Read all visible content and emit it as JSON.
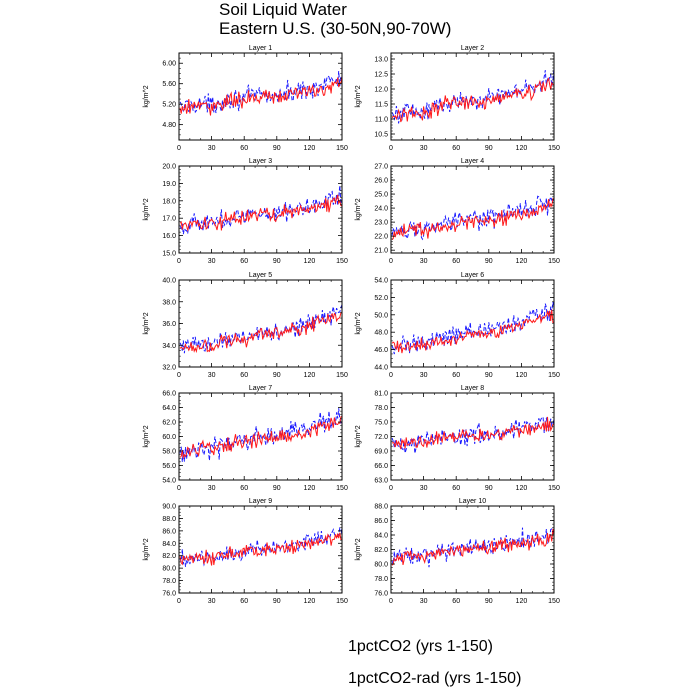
{
  "title": "Soil Liquid Water",
  "subtitle": "Eastern U.S. (30-50N,90-70W)",
  "colors": {
    "series1": "#1a1aff",
    "series2": "#ff1a1a",
    "axis": "#000000"
  },
  "legend": [
    {
      "label": "1pctCO2 (yrs 1-150)",
      "color": "#1a1aff",
      "style": "dashed"
    },
    {
      "label": "1pctCO2-rad (yrs 1-150)",
      "color": "#ff1a1a",
      "style": "solid"
    }
  ],
  "chart_data": [
    {
      "type": "line",
      "title": "Layer 1",
      "ylabel": "kg/m^2",
      "xlim": [
        0,
        150
      ],
      "ylim": [
        4.5,
        6.2
      ],
      "xticks": [
        0,
        30,
        60,
        90,
        120,
        150
      ],
      "yticks": [
        "4.80",
        "5.20",
        "5.60",
        "6.00"
      ],
      "yminor": 0.1,
      "series": [
        {
          "name": "1pctCO2 (yrs 1-150)",
          "x": [
            0,
            15,
            30,
            45,
            60,
            75,
            90,
            105,
            120,
            135,
            150
          ],
          "y": [
            5.12,
            5.22,
            5.18,
            5.3,
            5.32,
            5.38,
            5.36,
            5.44,
            5.5,
            5.62,
            5.7
          ]
        },
        {
          "name": "1pctCO2-rad (yrs 1-150)",
          "x": [
            0,
            15,
            30,
            45,
            60,
            75,
            90,
            105,
            120,
            135,
            150
          ],
          "y": [
            5.1,
            5.18,
            5.15,
            5.26,
            5.28,
            5.34,
            5.32,
            5.4,
            5.45,
            5.52,
            5.58
          ]
        }
      ]
    },
    {
      "type": "line",
      "title": "Layer 2",
      "ylabel": "kg/m^2",
      "xlim": [
        0,
        150
      ],
      "ylim": [
        10.3,
        13.2
      ],
      "xticks": [
        0,
        30,
        60,
        90,
        120,
        150
      ],
      "yticks": [
        "10.5",
        "11.0",
        "11.5",
        "12.0",
        "12.5",
        "13.0"
      ],
      "yminor": 0.1,
      "series": [
        {
          "name": "1pctCO2 (yrs 1-150)",
          "x": [
            0,
            15,
            30,
            45,
            60,
            75,
            90,
            105,
            120,
            135,
            150
          ],
          "y": [
            11.1,
            11.3,
            11.2,
            11.5,
            11.55,
            11.7,
            11.65,
            11.85,
            11.95,
            12.15,
            12.4
          ]
        },
        {
          "name": "1pctCO2-rad (yrs 1-150)",
          "x": [
            0,
            15,
            30,
            45,
            60,
            75,
            90,
            105,
            120,
            135,
            150
          ],
          "y": [
            11.05,
            11.25,
            11.15,
            11.45,
            11.5,
            11.6,
            11.6,
            11.75,
            11.85,
            12.0,
            12.2
          ]
        }
      ]
    },
    {
      "type": "line",
      "title": "Layer 3",
      "ylabel": "kg/m^2",
      "xlim": [
        0,
        150
      ],
      "ylim": [
        15.0,
        20.0
      ],
      "xticks": [
        0,
        30,
        60,
        90,
        120,
        150
      ],
      "yticks": [
        "15.0",
        "16.0",
        "17.0",
        "18.0",
        "19.0",
        "20.0"
      ],
      "yminor": 0.2,
      "series": [
        {
          "name": "1pctCO2 (yrs 1-150)",
          "x": [
            0,
            15,
            30,
            45,
            60,
            75,
            90,
            105,
            120,
            135,
            150
          ],
          "y": [
            16.5,
            16.8,
            16.7,
            17.0,
            17.1,
            17.3,
            17.3,
            17.5,
            17.7,
            18.0,
            18.3
          ]
        },
        {
          "name": "1pctCO2-rad (yrs 1-150)",
          "x": [
            0,
            15,
            30,
            45,
            60,
            75,
            90,
            105,
            120,
            135,
            150
          ],
          "y": [
            16.45,
            16.7,
            16.6,
            16.9,
            17.0,
            17.2,
            17.2,
            17.4,
            17.55,
            17.8,
            18.0
          ]
        }
      ]
    },
    {
      "type": "line",
      "title": "Layer 4",
      "ylabel": "kg/m^2",
      "xlim": [
        0,
        150
      ],
      "ylim": [
        20.8,
        27.0
      ],
      "xticks": [
        0,
        30,
        60,
        90,
        120,
        150
      ],
      "yticks": [
        "21.0",
        "22.0",
        "23.0",
        "24.0",
        "25.0",
        "26.0",
        "27.0"
      ],
      "yminor": 0.2,
      "series": [
        {
          "name": "1pctCO2 (yrs 1-150)",
          "x": [
            0,
            15,
            30,
            45,
            60,
            75,
            90,
            105,
            120,
            135,
            150
          ],
          "y": [
            22.2,
            22.5,
            22.5,
            22.8,
            23.0,
            23.2,
            23.2,
            23.5,
            23.8,
            24.2,
            24.6
          ]
        },
        {
          "name": "1pctCO2-rad (yrs 1-150)",
          "x": [
            0,
            15,
            30,
            45,
            60,
            75,
            90,
            105,
            120,
            135,
            150
          ],
          "y": [
            22.1,
            22.4,
            22.4,
            22.7,
            22.9,
            23.1,
            23.1,
            23.3,
            23.6,
            23.9,
            24.2
          ]
        }
      ]
    },
    {
      "type": "line",
      "title": "Layer 5",
      "ylabel": "kg/m^2",
      "xlim": [
        0,
        150
      ],
      "ylim": [
        32.0,
        40.0
      ],
      "xticks": [
        0,
        30,
        60,
        90,
        120,
        150
      ],
      "yticks": [
        "32.0",
        "34.0",
        "36.0",
        "38.0",
        "40.0"
      ],
      "yminor": 0.5,
      "series": [
        {
          "name": "1pctCO2 (yrs 1-150)",
          "x": [
            0,
            15,
            30,
            45,
            60,
            75,
            90,
            105,
            120,
            135,
            150
          ],
          "y": [
            33.8,
            34.2,
            34.1,
            34.6,
            34.8,
            35.2,
            35.2,
            35.6,
            36.0,
            36.6,
            37.2
          ]
        },
        {
          "name": "1pctCO2-rad (yrs 1-150)",
          "x": [
            0,
            15,
            30,
            45,
            60,
            75,
            90,
            105,
            120,
            135,
            150
          ],
          "y": [
            33.7,
            34.0,
            34.0,
            34.4,
            34.6,
            35.0,
            35.0,
            35.4,
            35.8,
            36.2,
            36.7
          ]
        }
      ]
    },
    {
      "type": "line",
      "title": "Layer 6",
      "ylabel": "kg/m^2",
      "xlim": [
        0,
        150
      ],
      "ylim": [
        44.0,
        54.0
      ],
      "xticks": [
        0,
        30,
        60,
        90,
        120,
        150
      ],
      "yticks": [
        "44.0",
        "46.0",
        "48.0",
        "50.0",
        "52.0",
        "54.0"
      ],
      "yminor": 0.5,
      "series": [
        {
          "name": "1pctCO2 (yrs 1-150)",
          "x": [
            0,
            15,
            30,
            45,
            60,
            75,
            90,
            105,
            120,
            135,
            150
          ],
          "y": [
            46.2,
            46.8,
            46.7,
            47.3,
            47.6,
            48.1,
            48.1,
            48.6,
            49.2,
            49.9,
            50.6
          ]
        },
        {
          "name": "1pctCO2-rad (yrs 1-150)",
          "x": [
            0,
            15,
            30,
            45,
            60,
            75,
            90,
            105,
            120,
            135,
            150
          ],
          "y": [
            46.1,
            46.6,
            46.5,
            47.1,
            47.3,
            47.8,
            47.8,
            48.3,
            48.8,
            49.4,
            50.0
          ]
        }
      ]
    },
    {
      "type": "line",
      "title": "Layer 7",
      "ylabel": "kg/m^2",
      "xlim": [
        0,
        150
      ],
      "ylim": [
        54.0,
        66.0
      ],
      "xticks": [
        0,
        30,
        60,
        90,
        120,
        150
      ],
      "yticks": [
        "54.0",
        "56.0",
        "58.0",
        "60.0",
        "62.0",
        "64.0",
        "66.0"
      ],
      "yminor": 0.5,
      "series": [
        {
          "name": "1pctCO2 (yrs 1-150)",
          "x": [
            0,
            15,
            30,
            45,
            60,
            75,
            90,
            105,
            120,
            135,
            150
          ],
          "y": [
            57.8,
            58.5,
            58.4,
            59.1,
            59.4,
            60.0,
            60.0,
            60.6,
            61.2,
            62.0,
            62.8
          ]
        },
        {
          "name": "1pctCO2-rad (yrs 1-150)",
          "x": [
            0,
            15,
            30,
            45,
            60,
            75,
            90,
            105,
            120,
            135,
            150
          ],
          "y": [
            57.7,
            58.3,
            58.2,
            58.9,
            59.2,
            59.7,
            59.7,
            60.2,
            60.8,
            61.5,
            62.2
          ]
        }
      ]
    },
    {
      "type": "line",
      "title": "Layer 8",
      "ylabel": "kg/m^2",
      "xlim": [
        0,
        150
      ],
      "ylim": [
        63.0,
        81.0
      ],
      "xticks": [
        0,
        30,
        60,
        90,
        120,
        150
      ],
      "yticks": [
        "63.0",
        "66.0",
        "69.0",
        "72.0",
        "75.0",
        "78.0",
        "81.0"
      ],
      "yminor": 1.0,
      "series": [
        {
          "name": "1pctCO2 (yrs 1-150)",
          "x": [
            0,
            15,
            30,
            45,
            60,
            75,
            90,
            105,
            120,
            135,
            150
          ],
          "y": [
            70.5,
            71.2,
            71.0,
            71.8,
            72.1,
            72.6,
            72.6,
            73.2,
            73.7,
            74.3,
            74.9
          ]
        },
        {
          "name": "1pctCO2-rad (yrs 1-150)",
          "x": [
            0,
            15,
            30,
            45,
            60,
            75,
            90,
            105,
            120,
            135,
            150
          ],
          "y": [
            70.4,
            71.0,
            70.9,
            71.6,
            71.9,
            72.4,
            72.4,
            72.9,
            73.4,
            73.9,
            74.4
          ]
        }
      ]
    },
    {
      "type": "line",
      "title": "Layer 9",
      "ylabel": "kg/m^2",
      "xlim": [
        0,
        150
      ],
      "ylim": [
        76.0,
        90.0
      ],
      "xticks": [
        0,
        30,
        60,
        90,
        120,
        150
      ],
      "yticks": [
        "76.0",
        "78.0",
        "80.0",
        "82.0",
        "84.0",
        "86.0",
        "88.0",
        "90.0"
      ],
      "yminor": 0.5,
      "series": [
        {
          "name": "1pctCO2 (yrs 1-150)",
          "x": [
            0,
            15,
            30,
            45,
            60,
            75,
            90,
            105,
            120,
            135,
            150
          ],
          "y": [
            81.0,
            81.8,
            81.7,
            82.4,
            82.7,
            83.2,
            83.2,
            83.8,
            84.4,
            85.0,
            85.6
          ]
        },
        {
          "name": "1pctCO2-rad (yrs 1-150)",
          "x": [
            0,
            15,
            30,
            45,
            60,
            75,
            90,
            105,
            120,
            135,
            150
          ],
          "y": [
            80.9,
            81.6,
            81.5,
            82.2,
            82.5,
            83.0,
            83.0,
            83.5,
            84.0,
            84.6,
            85.1
          ]
        }
      ]
    },
    {
      "type": "line",
      "title": "Layer 10",
      "ylabel": "kg/m^2",
      "xlim": [
        0,
        150
      ],
      "ylim": [
        76.0,
        88.0
      ],
      "xticks": [
        0,
        30,
        60,
        90,
        120,
        150
      ],
      "yticks": [
        "76.0",
        "78.0",
        "80.0",
        "82.0",
        "84.0",
        "86.0",
        "88.0"
      ],
      "yminor": 0.5,
      "series": [
        {
          "name": "1pctCO2 (yrs 1-150)",
          "x": [
            0,
            15,
            30,
            45,
            60,
            75,
            90,
            105,
            120,
            135,
            150
          ],
          "y": [
            80.4,
            81.0,
            81.0,
            81.6,
            81.9,
            82.3,
            82.3,
            82.8,
            83.2,
            83.7,
            84.2
          ]
        },
        {
          "name": "1pctCO2-rad (yrs 1-150)",
          "x": [
            0,
            15,
            30,
            45,
            60,
            75,
            90,
            105,
            120,
            135,
            150
          ],
          "y": [
            80.3,
            80.9,
            80.8,
            81.4,
            81.7,
            82.1,
            82.1,
            82.5,
            82.9,
            83.3,
            83.7
          ]
        }
      ]
    }
  ]
}
